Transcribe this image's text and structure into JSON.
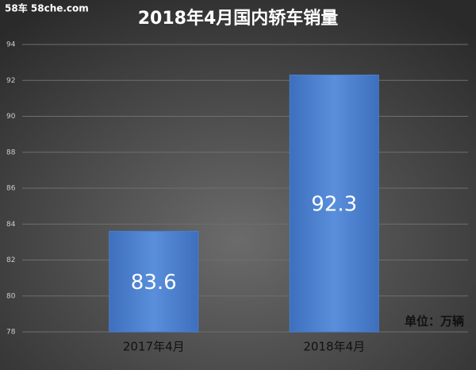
{
  "chart_data": {
    "type": "bar",
    "title": "2018年4月国内轿车销量",
    "watermark": "58车  58che.com",
    "annotation": "单位：万辆",
    "categories": [
      "2017年4月",
      "2018年4月"
    ],
    "values": [
      83.6,
      92.3
    ],
    "color": "#4a7fcf",
    "ylim": [
      78,
      94
    ],
    "yticks": [
      78,
      80,
      82,
      84,
      86,
      88,
      90,
      92,
      94
    ],
    "grid": true
  }
}
